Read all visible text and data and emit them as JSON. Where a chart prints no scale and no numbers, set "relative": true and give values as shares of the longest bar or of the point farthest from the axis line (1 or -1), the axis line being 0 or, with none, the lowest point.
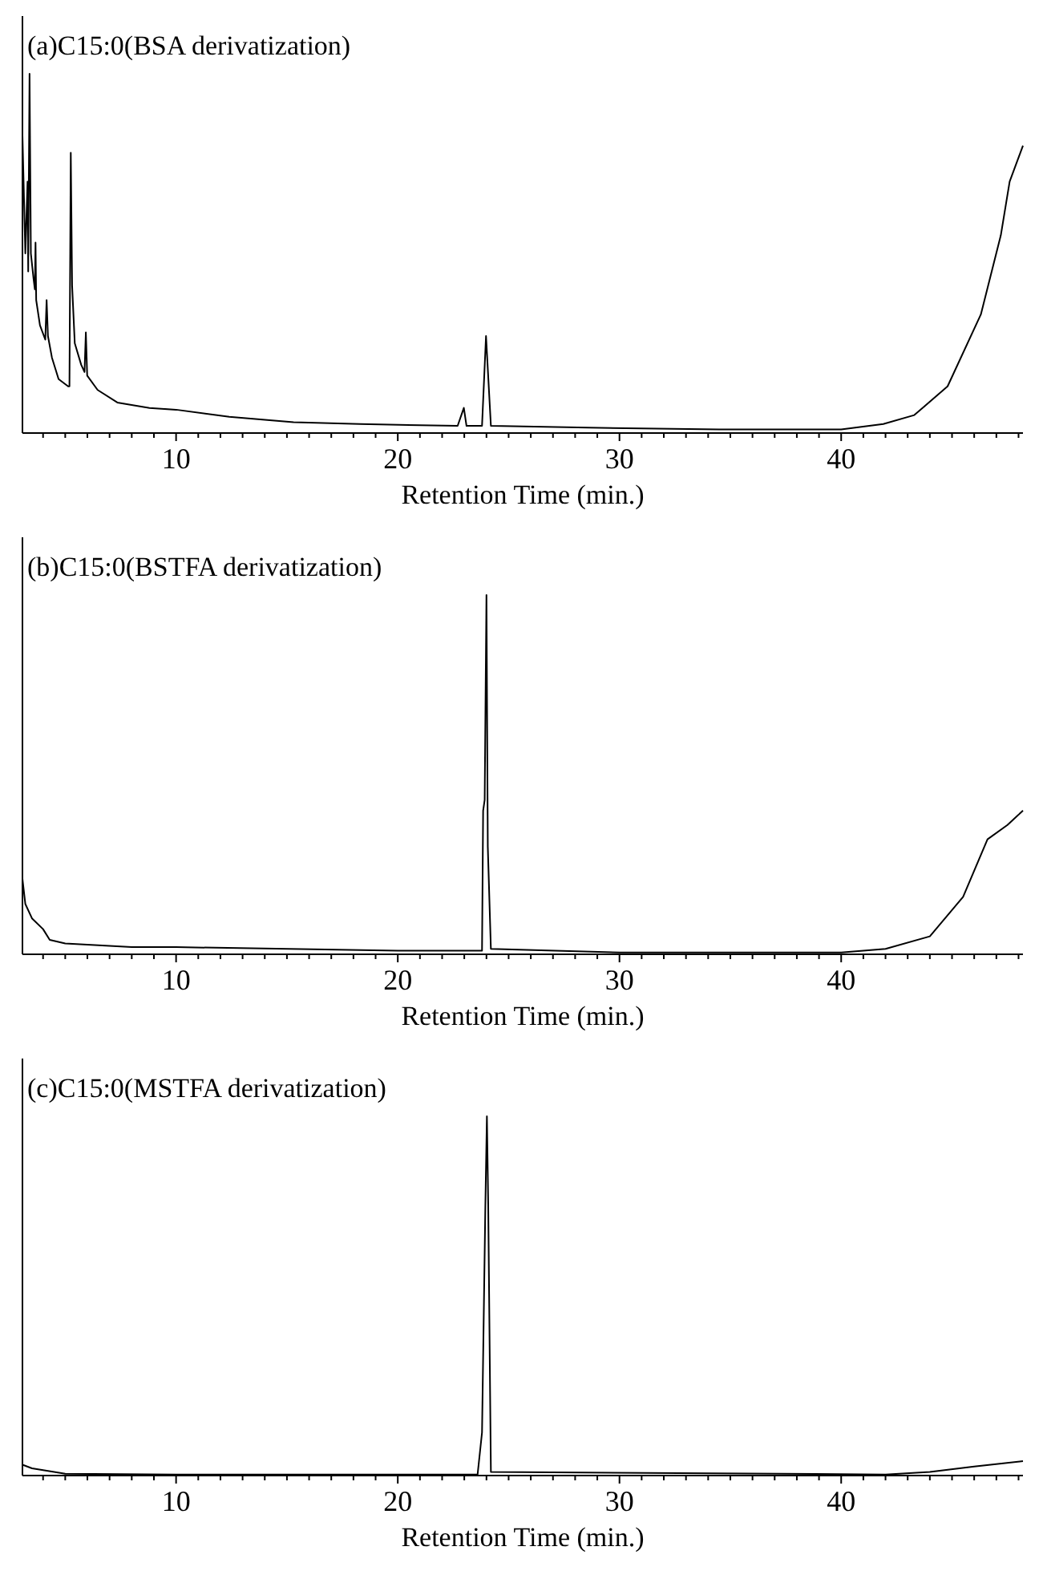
{
  "chart_data": [
    {
      "type": "line",
      "title": "(a)C15:0(BSA derivatization)",
      "xlabel": "Retention Time (min.)",
      "relative": true,
      "xlim": [
        3.07,
        48.2
      ],
      "xticks": [
        {
          "value": 4,
          "label": null
        },
        {
          "value": 5,
          "label": null
        },
        {
          "value": 6,
          "label": null
        },
        {
          "value": 7,
          "label": null
        },
        {
          "value": 8,
          "label": null
        },
        {
          "value": 9,
          "label": null
        },
        10,
        {
          "value": 11,
          "label": null
        },
        {
          "value": 12,
          "label": null
        },
        {
          "value": 13,
          "label": null
        },
        {
          "value": 14,
          "label": null
        },
        {
          "value": 15,
          "label": null
        },
        {
          "value": 16,
          "label": null
        },
        {
          "value": 17,
          "label": null
        },
        {
          "value": 18,
          "label": null
        },
        {
          "value": 19,
          "label": null
        },
        20,
        {
          "value": 21,
          "label": null
        },
        {
          "value": 22,
          "label": null
        },
        {
          "value": 23,
          "label": null
        },
        {
          "value": 24,
          "label": null
        },
        {
          "value": 25,
          "label": null
        },
        {
          "value": 26,
          "label": null
        },
        {
          "value": 27,
          "label": null
        },
        {
          "value": 28,
          "label": null
        },
        {
          "value": 29,
          "label": null
        },
        30,
        {
          "value": 31,
          "label": null
        },
        {
          "value": 32,
          "label": null
        },
        {
          "value": 33,
          "label": null
        },
        {
          "value": 34,
          "label": null
        },
        {
          "value": 35,
          "label": null
        },
        {
          "value": 36,
          "label": null
        },
        {
          "value": 37,
          "label": null
        },
        {
          "value": 38,
          "label": null
        },
        {
          "value": 39,
          "label": null
        },
        40,
        {
          "value": 41,
          "label": null
        },
        {
          "value": 42,
          "label": null
        },
        {
          "value": 43,
          "label": null
        },
        {
          "value": 44,
          "label": null
        },
        {
          "value": 45,
          "label": null
        },
        {
          "value": 46,
          "label": null
        },
        {
          "value": 47,
          "label": null
        },
        {
          "value": 48,
          "label": null
        }
      ],
      "series": [
        {
          "color": "#000000",
          "x": [
            3.07,
            3.2,
            3.3,
            3.33,
            3.39,
            3.45,
            3.57,
            3.63,
            3.66,
            3.69,
            3.86,
            4.1,
            4.16,
            4.22,
            4.4,
            4.7,
            5.13,
            5.19,
            5.25,
            5.31,
            5.43,
            5.72,
            5.87,
            5.93,
            5.99,
            6.46,
            7.35,
            8.8,
            10,
            12.4,
            15.3,
            18.3,
            22.7,
            22.98,
            23.1,
            23.8,
            23.98,
            24.2,
            28.6,
            34.5,
            40,
            41.9,
            43.3,
            44.8,
            46.3,
            47.2,
            47.6,
            48.2
          ],
          "values": [
            0.83,
            0.5,
            0.7,
            0.45,
            1.0,
            0.5,
            0.43,
            0.4,
            0.53,
            0.37,
            0.3,
            0.26,
            0.37,
            0.27,
            0.21,
            0.15,
            0.13,
            0.13,
            0.78,
            0.41,
            0.25,
            0.19,
            0.17,
            0.28,
            0.16,
            0.12,
            0.085,
            0.07,
            0.065,
            0.045,
            0.03,
            0.025,
            0.02,
            0.07,
            0.02,
            0.02,
            0.27,
            0.02,
            0.015,
            0.01,
            0.01,
            0.025,
            0.05,
            0.13,
            0.33,
            0.55,
            0.7,
            0.8
          ]
        }
      ]
    },
    {
      "type": "line",
      "title": "(b)C15:0(BSTFA derivatization)",
      "xlabel": "Retention Time (min.)",
      "relative": true,
      "xlim": [
        3.07,
        48.2
      ],
      "xticks": [
        {
          "value": 4,
          "label": null
        },
        {
          "value": 5,
          "label": null
        },
        {
          "value": 6,
          "label": null
        },
        {
          "value": 7,
          "label": null
        },
        {
          "value": 8,
          "label": null
        },
        {
          "value": 9,
          "label": null
        },
        10,
        {
          "value": 11,
          "label": null
        },
        {
          "value": 12,
          "label": null
        },
        {
          "value": 13,
          "label": null
        },
        {
          "value": 14,
          "label": null
        },
        {
          "value": 15,
          "label": null
        },
        {
          "value": 16,
          "label": null
        },
        {
          "value": 17,
          "label": null
        },
        {
          "value": 18,
          "label": null
        },
        {
          "value": 19,
          "label": null
        },
        20,
        {
          "value": 21,
          "label": null
        },
        {
          "value": 22,
          "label": null
        },
        {
          "value": 23,
          "label": null
        },
        {
          "value": 24,
          "label": null
        },
        {
          "value": 25,
          "label": null
        },
        {
          "value": 26,
          "label": null
        },
        {
          "value": 27,
          "label": null
        },
        {
          "value": 28,
          "label": null
        },
        {
          "value": 29,
          "label": null
        },
        30,
        {
          "value": 31,
          "label": null
        },
        {
          "value": 32,
          "label": null
        },
        {
          "value": 33,
          "label": null
        },
        {
          "value": 34,
          "label": null
        },
        {
          "value": 35,
          "label": null
        },
        {
          "value": 36,
          "label": null
        },
        {
          "value": 37,
          "label": null
        },
        {
          "value": 38,
          "label": null
        },
        {
          "value": 39,
          "label": null
        },
        40,
        {
          "value": 41,
          "label": null
        },
        {
          "value": 42,
          "label": null
        },
        {
          "value": 43,
          "label": null
        },
        {
          "value": 44,
          "label": null
        },
        {
          "value": 45,
          "label": null
        },
        {
          "value": 46,
          "label": null
        },
        {
          "value": 47,
          "label": null
        },
        {
          "value": 48,
          "label": null
        }
      ],
      "series": [
        {
          "color": "#000000",
          "x": [
            3.07,
            3.2,
            3.5,
            4.0,
            4.3,
            5,
            8,
            10,
            20,
            23.8,
            23.85,
            23.92,
            24.0,
            24.06,
            24.2,
            30,
            40,
            42,
            44,
            45.5,
            46.6,
            47.5,
            48.2
          ],
          "values": [
            0.21,
            0.14,
            0.1,
            0.07,
            0.04,
            0.03,
            0.02,
            0.02,
            0.01,
            0.01,
            0.4,
            0.43,
            1.0,
            0.3,
            0.015,
            0.005,
            0.005,
            0.015,
            0.05,
            0.16,
            0.32,
            0.36,
            0.4
          ]
        }
      ]
    },
    {
      "type": "line",
      "title": "(c)C15:0(MSTFA derivatization)",
      "xlabel": "Retention Time (min.)",
      "relative": true,
      "xlim": [
        3.07,
        48.2
      ],
      "xticks": [
        {
          "value": 4,
          "label": null
        },
        {
          "value": 5,
          "label": null
        },
        {
          "value": 6,
          "label": null
        },
        {
          "value": 7,
          "label": null
        },
        {
          "value": 8,
          "label": null
        },
        {
          "value": 9,
          "label": null
        },
        10,
        {
          "value": 11,
          "label": null
        },
        {
          "value": 12,
          "label": null
        },
        {
          "value": 13,
          "label": null
        },
        {
          "value": 14,
          "label": null
        },
        {
          "value": 15,
          "label": null
        },
        {
          "value": 16,
          "label": null
        },
        {
          "value": 17,
          "label": null
        },
        {
          "value": 18,
          "label": null
        },
        {
          "value": 19,
          "label": null
        },
        20,
        {
          "value": 21,
          "label": null
        },
        {
          "value": 22,
          "label": null
        },
        {
          "value": 23,
          "label": null
        },
        {
          "value": 24,
          "label": null
        },
        {
          "value": 25,
          "label": null
        },
        {
          "value": 26,
          "label": null
        },
        {
          "value": 27,
          "label": null
        },
        {
          "value": 28,
          "label": null
        },
        {
          "value": 29,
          "label": null
        },
        30,
        {
          "value": 31,
          "label": null
        },
        {
          "value": 32,
          "label": null
        },
        {
          "value": 33,
          "label": null
        },
        {
          "value": 34,
          "label": null
        },
        {
          "value": 35,
          "label": null
        },
        {
          "value": 36,
          "label": null
        },
        {
          "value": 37,
          "label": null
        },
        {
          "value": 38,
          "label": null
        },
        {
          "value": 39,
          "label": null
        },
        40,
        {
          "value": 41,
          "label": null
        },
        {
          "value": 42,
          "label": null
        },
        {
          "value": 43,
          "label": null
        },
        {
          "value": 44,
          "label": null
        },
        {
          "value": 45,
          "label": null
        },
        {
          "value": 46,
          "label": null
        },
        {
          "value": 47,
          "label": null
        },
        {
          "value": 48,
          "label": null
        }
      ],
      "series": [
        {
          "color": "#000000",
          "x": [
            3.07,
            3.5,
            4.0,
            5,
            10,
            23.6,
            23.8,
            23.95,
            24.02,
            24.08,
            24.2,
            42,
            44,
            46,
            48.2
          ],
          "values": [
            0.03,
            0.02,
            0.015,
            0.005,
            0.003,
            0.003,
            0.12,
            0.75,
            1.0,
            0.75,
            0.01,
            0.003,
            0.01,
            0.025,
            0.04
          ]
        }
      ]
    }
  ]
}
